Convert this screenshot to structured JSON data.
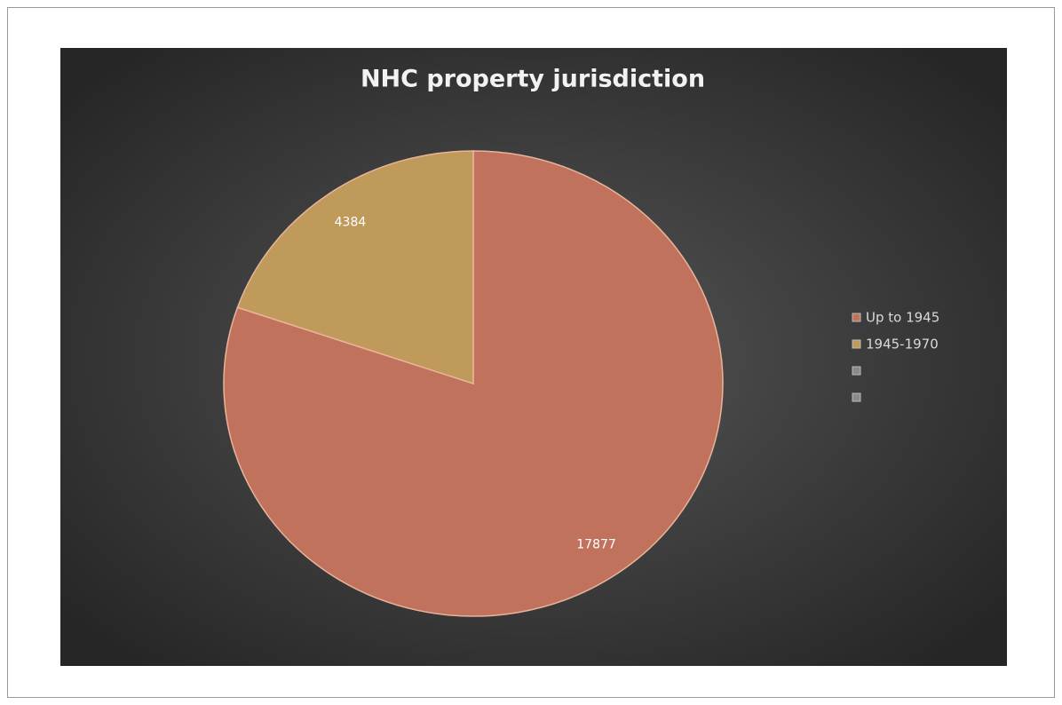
{
  "chart_data": {
    "type": "pie",
    "title": "NHC property jurisdiction",
    "categories": [
      "Up to 1945",
      "1945-1970",
      null,
      null
    ],
    "values": [
      17877,
      4384,
      null,
      null
    ],
    "colors": [
      "#c0725c",
      "#c09a5a",
      "#8a8a8a",
      "#8a8a8a"
    ],
    "legend": "right"
  }
}
